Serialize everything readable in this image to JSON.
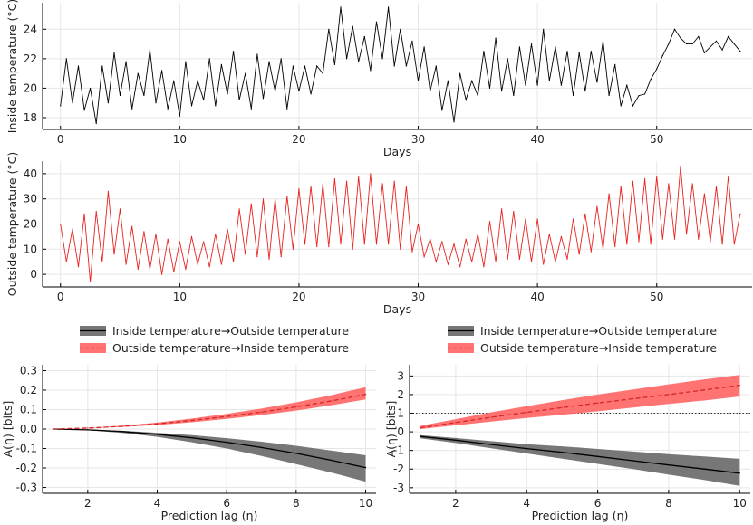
{
  "chart_data": [
    {
      "type": "line",
      "title": "",
      "xlabel": "Days",
      "ylabel": "Inside temperature (°C)",
      "xlim": [
        -1.5,
        58
      ],
      "ylim": [
        17.2,
        25.8
      ],
      "x_ticks": [
        0,
        10,
        20,
        30,
        40,
        50
      ],
      "y_ticks": [
        18,
        20,
        22,
        24
      ],
      "series": [
        {
          "name": "Inside temperature",
          "color": "#000000",
          "x": [
            0,
            0.5,
            1,
            1.5,
            2,
            2.5,
            3,
            3.5,
            4,
            4.5,
            5,
            5.5,
            6,
            6.5,
            7,
            7.5,
            8,
            8.5,
            9,
            9.5,
            10,
            10.5,
            11,
            11.5,
            12,
            12.5,
            13,
            13.5,
            14,
            14.5,
            15,
            15.5,
            16,
            16.5,
            17,
            17.5,
            18,
            18.5,
            19,
            19.5,
            20,
            20.5,
            21,
            21.5,
            22,
            22.5,
            23,
            23.5,
            24,
            24.5,
            25,
            25.5,
            26,
            26.5,
            27,
            27.5,
            28,
            28.5,
            29,
            29.5,
            30,
            30.5,
            31,
            31.5,
            32,
            32.5,
            33,
            33.5,
            34,
            34.5,
            35,
            35.5,
            36,
            36.5,
            37,
            37.5,
            38,
            38.5,
            39,
            39.5,
            40,
            40.5,
            41,
            41.5,
            42,
            42.5,
            43,
            43.5,
            44,
            44.5,
            45,
            45.5,
            46,
            46.5,
            47,
            47.5,
            48,
            48.5,
            49,
            49.5,
            50,
            50.5,
            51,
            51.5,
            52,
            52.5,
            53,
            53.5,
            54,
            54.5,
            55,
            55.5,
            56,
            56.5,
            57
          ],
          "y": [
            18.8,
            22,
            19,
            21.5,
            18.5,
            20,
            17.6,
            21.5,
            19,
            22.4,
            19.5,
            21.8,
            18.6,
            21,
            19.5,
            22.6,
            19,
            21.2,
            18.6,
            20.5,
            18.1,
            21.8,
            18.8,
            20.5,
            19.2,
            22,
            18.8,
            21.6,
            19.6,
            22.5,
            19.2,
            21,
            18.6,
            22.3,
            19.3,
            21.8,
            19.8,
            22,
            18.6,
            21.5,
            19.8,
            21.5,
            19.6,
            21.5,
            21,
            24,
            21.6,
            25.5,
            22,
            24.2,
            21.8,
            23.5,
            21.2,
            24.5,
            22,
            25.5,
            21.5,
            24,
            21.5,
            23.2,
            20.5,
            22.8,
            19.8,
            21.5,
            18.5,
            20.5,
            17.7,
            21,
            19.2,
            20.5,
            19.5,
            22.5,
            20,
            23.4,
            19.8,
            22,
            19.5,
            22.8,
            20.2,
            23,
            20.2,
            24,
            20.5,
            22.8,
            20.2,
            22.5,
            19.5,
            22.4,
            19.8,
            22.5,
            20.4,
            23.2,
            19.5,
            21.6,
            18.8,
            20.2,
            18.8,
            19.5,
            19.6,
            20.6,
            21.3,
            22.2,
            23,
            24,
            23.4,
            23,
            23,
            23.5,
            22.4,
            22.8,
            23.2,
            22.6,
            23.5,
            23,
            22.5
          ]
        }
      ]
    },
    {
      "type": "line",
      "title": "",
      "xlabel": "Days",
      "ylabel": "Outside temperature (°C)",
      "xlim": [
        -1.5,
        58
      ],
      "ylim": [
        -5,
        45
      ],
      "x_ticks": [
        0,
        10,
        20,
        30,
        40,
        50
      ],
      "y_ticks": [
        0,
        10,
        20,
        30,
        40
      ],
      "series": [
        {
          "name": "Outside temperature",
          "color": "#e8231f",
          "x": [
            0,
            0.5,
            1,
            1.5,
            2,
            2.5,
            3,
            3.5,
            4,
            4.5,
            5,
            5.5,
            6,
            6.5,
            7,
            7.5,
            8,
            8.5,
            9,
            9.5,
            10,
            10.5,
            11,
            11.5,
            12,
            12.5,
            13,
            13.5,
            14,
            14.5,
            15,
            15.5,
            16,
            16.5,
            17,
            17.5,
            18,
            18.5,
            19,
            19.5,
            20,
            20.5,
            21,
            21.5,
            22,
            22.5,
            23,
            23.5,
            24,
            24.5,
            25,
            25.5,
            26,
            26.5,
            27,
            27.5,
            28,
            28.5,
            29,
            29.5,
            30,
            30.5,
            31,
            31.5,
            32,
            32.5,
            33,
            33.5,
            34,
            34.5,
            35,
            35.5,
            36,
            36.5,
            37,
            37.5,
            38,
            38.5,
            39,
            39.5,
            40,
            40.5,
            41,
            41.5,
            42,
            42.5,
            43,
            43.5,
            44,
            44.5,
            45,
            45.5,
            46,
            46.5,
            47,
            47.5,
            48,
            48.5,
            49,
            49.5,
            50,
            50.5,
            51,
            51.5,
            52,
            52.5,
            53,
            53.5,
            54,
            54.5,
            55,
            55.5,
            56,
            56.5,
            57
          ],
          "y": [
            20,
            5,
            18,
            3,
            24,
            -3,
            25,
            5,
            33,
            8,
            26,
            4,
            19,
            2,
            17,
            2,
            16,
            0,
            14,
            1,
            13,
            2,
            15,
            4,
            13,
            3,
            16,
            4,
            18,
            5,
            26,
            8,
            28,
            7,
            30,
            6,
            30,
            7,
            31,
            10,
            34,
            12,
            35,
            11,
            36,
            11,
            38,
            12,
            37,
            10,
            39,
            12,
            40,
            12,
            36,
            12,
            37,
            10,
            35,
            9,
            20,
            7,
            14,
            5,
            13,
            4,
            12,
            3,
            14,
            5,
            16,
            3,
            21,
            5,
            26,
            6,
            25,
            6,
            22,
            5,
            22,
            4,
            16,
            5,
            15,
            6,
            22,
            8,
            24,
            9,
            27,
            10,
            32,
            11,
            35,
            12,
            37,
            13,
            38,
            12,
            39,
            14,
            36,
            14,
            43,
            16,
            36,
            14,
            32,
            13,
            35,
            12,
            39,
            12,
            24
          ]
        }
      ]
    },
    {
      "type": "area",
      "title": "",
      "xlabel": "Prediction lag (η)",
      "ylabel": "A(η) [bits]",
      "xlim": [
        0.7,
        10.3
      ],
      "ylim": [
        -0.33,
        0.33
      ],
      "x_ticks": [
        2,
        4,
        6,
        8,
        10
      ],
      "y_ticks": [
        -0.3,
        -0.2,
        -0.1,
        0.0,
        0.1,
        0.2,
        0.3
      ],
      "legend_position": "top",
      "series": [
        {
          "name": "Inside temperature→Outside temperature",
          "color": "#000000",
          "band_color": "#707070",
          "x": [
            1,
            2,
            3,
            4,
            5,
            6,
            7,
            8,
            9,
            10
          ],
          "mean": [
            0,
            -0.004,
            -0.013,
            -0.027,
            -0.045,
            -0.068,
            -0.095,
            -0.125,
            -0.16,
            -0.198
          ],
          "lower": [
            0,
            -0.006,
            -0.02,
            -0.04,
            -0.068,
            -0.1,
            -0.138,
            -0.18,
            -0.223,
            -0.27
          ],
          "upper": [
            0,
            -0.003,
            -0.009,
            -0.019,
            -0.031,
            -0.047,
            -0.065,
            -0.086,
            -0.11,
            -0.135
          ]
        },
        {
          "name": "Outside temperature→Inside temperature",
          "color": "#d62728",
          "band_color": "#ff6b6b",
          "x": [
            1,
            2,
            3,
            4,
            5,
            6,
            7,
            8,
            9,
            10
          ],
          "mean": [
            0,
            0.005,
            0.014,
            0.027,
            0.044,
            0.064,
            0.087,
            0.114,
            0.144,
            0.178
          ],
          "lower": [
            0,
            0.004,
            0.011,
            0.021,
            0.035,
            0.052,
            0.072,
            0.095,
            0.122,
            0.152
          ],
          "upper": [
            0,
            0.006,
            0.017,
            0.033,
            0.054,
            0.078,
            0.105,
            0.137,
            0.174,
            0.215
          ]
        }
      ]
    },
    {
      "type": "area",
      "title": "",
      "xlabel": "Prediction lag (η)",
      "ylabel": "A(η) [bits]",
      "xlim": [
        0.7,
        10.3
      ],
      "ylim": [
        -3.3,
        3.6
      ],
      "x_ticks": [
        2,
        4,
        6,
        8,
        10
      ],
      "y_ticks": [
        -3,
        -2,
        -1,
        0,
        1,
        2,
        3
      ],
      "reference_line": 1,
      "legend_position": "top",
      "series": [
        {
          "name": "Inside temperature→Outside temperature",
          "color": "#000000",
          "band_color": "#707070",
          "x": [
            1,
            2,
            3,
            4,
            5,
            6,
            7,
            8,
            9,
            10
          ],
          "mean": [
            -0.25,
            -0.45,
            -0.68,
            -0.9,
            -1.1,
            -1.32,
            -1.55,
            -1.78,
            -2.0,
            -2.22
          ],
          "lower": [
            -0.35,
            -0.6,
            -0.88,
            -1.16,
            -1.44,
            -1.72,
            -2.0,
            -2.3,
            -2.58,
            -2.9
          ],
          "upper": [
            -0.18,
            -0.33,
            -0.5,
            -0.66,
            -0.78,
            -0.92,
            -1.06,
            -1.2,
            -1.32,
            -1.45
          ]
        },
        {
          "name": "Outside temperature→Inside temperature",
          "color": "#d62728",
          "band_color": "#ff6b6b",
          "x": [
            1,
            2,
            3,
            4,
            5,
            6,
            7,
            8,
            9,
            10
          ],
          "mean": [
            0.22,
            0.5,
            0.78,
            1.05,
            1.3,
            1.55,
            1.78,
            2.0,
            2.25,
            2.5
          ],
          "lower": [
            0.15,
            0.35,
            0.55,
            0.75,
            0.92,
            1.1,
            1.3,
            1.5,
            1.68,
            1.9
          ],
          "upper": [
            0.32,
            0.68,
            1.05,
            1.38,
            1.7,
            2.0,
            2.28,
            2.55,
            2.82,
            3.05
          ]
        }
      ]
    }
  ]
}
